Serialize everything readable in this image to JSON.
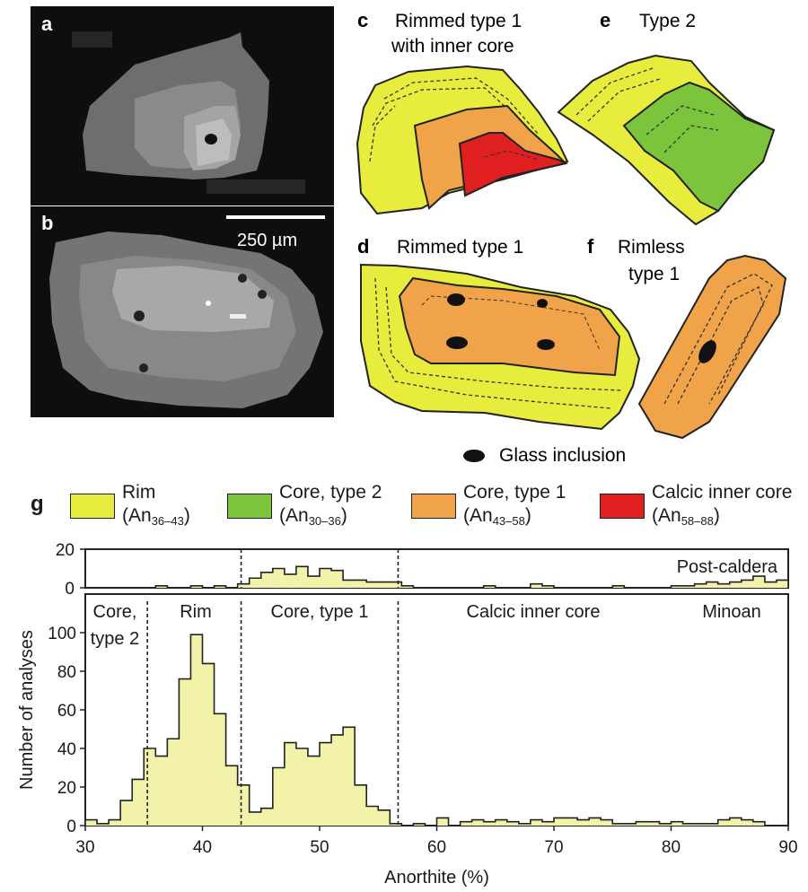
{
  "panels": {
    "a": {
      "letter": "a"
    },
    "b": {
      "letter": "b"
    },
    "scale_bar": "250 µm",
    "c": {
      "letter": "c",
      "title_line1": "Rimmed type 1",
      "title_line2": "with inner core"
    },
    "d": {
      "letter": "d",
      "title": "Rimmed type 1"
    },
    "e": {
      "letter": "e",
      "title": "Type 2"
    },
    "f": {
      "letter": "f",
      "title_line1": "Rimless",
      "title_line2": "type 1"
    },
    "glass_label": "Glass inclusion"
  },
  "legend": {
    "letter": "g",
    "items": [
      {
        "label": "Rim",
        "range": "An",
        "sub": "36–43",
        "color": "#e8ec3c"
      },
      {
        "label": "Core, type 2",
        "range": "An",
        "sub": "30–36",
        "color": "#7cc43c"
      },
      {
        "label": "Core, type 1",
        "range": "An",
        "sub": "43–58",
        "color": "#f0a348"
      },
      {
        "label": "Calcic inner core",
        "range": "An",
        "sub": "58–88",
        "color": "#e02020"
      }
    ]
  },
  "colors": {
    "rim": "#e8ec3c",
    "core_type2": "#7cc43c",
    "core_type1": "#f0a348",
    "calcic": "#e02020",
    "hist_fill": "#f2f2a8"
  },
  "chart_data": [
    {
      "type": "bar",
      "panel": "Post-caldera",
      "xlim": [
        30,
        90
      ],
      "ylim": [
        0,
        20
      ],
      "yticks": [
        "20",
        "0"
      ],
      "dashed_x": [
        43.3,
        56.7
      ],
      "bin_width": 1,
      "x": [
        30,
        31,
        32,
        33,
        34,
        35,
        36,
        37,
        38,
        39,
        40,
        41,
        42,
        43,
        44,
        45,
        46,
        47,
        48,
        49,
        50,
        51,
        52,
        53,
        54,
        55,
        56,
        57,
        58,
        59,
        60,
        61,
        62,
        63,
        64,
        65,
        66,
        67,
        68,
        69,
        70,
        71,
        72,
        73,
        74,
        75,
        76,
        77,
        78,
        79,
        80,
        81,
        82,
        83,
        84,
        85,
        86,
        87,
        88,
        89
      ],
      "values": [
        0,
        0,
        0,
        0,
        0,
        0,
        1,
        0,
        0,
        1,
        0,
        1,
        0,
        2,
        5,
        8,
        10,
        7,
        11,
        6,
        10,
        9,
        4,
        4,
        3,
        3,
        3,
        1,
        0,
        0,
        0,
        0,
        0,
        0,
        1,
        0,
        0,
        0,
        2,
        1,
        0,
        0,
        0,
        0,
        0,
        1,
        0,
        0,
        0,
        0,
        1,
        1,
        2,
        3,
        2,
        3,
        4,
        6,
        3,
        4
      ]
    },
    {
      "type": "bar",
      "panel": "Minoan",
      "xlabel": "Anorthite (%)",
      "ylabel": "Number of analyses",
      "xlim": [
        30,
        90
      ],
      "ylim": [
        0,
        120
      ],
      "xticks": [
        "30",
        "40",
        "50",
        "60",
        "70",
        "80",
        "90"
      ],
      "yticks": [
        "0",
        "20",
        "40",
        "60",
        "80",
        "100"
      ],
      "dashed_x": [
        35.3,
        43.3,
        56.7
      ],
      "region_labels": [
        {
          "line1": "Core,",
          "line2": "type 2"
        },
        {
          "line1": "Rim",
          "line2": ""
        },
        {
          "line1": "Core, type 1",
          "line2": ""
        },
        {
          "line1": "Calcic inner core",
          "line2": ""
        },
        {
          "line1": "Minoan",
          "line2": ""
        }
      ],
      "bin_width": 1,
      "x": [
        30,
        31,
        32,
        33,
        34,
        35,
        36,
        37,
        38,
        39,
        40,
        41,
        42,
        43,
        44,
        45,
        46,
        47,
        48,
        49,
        50,
        51,
        52,
        53,
        54,
        55,
        56,
        57,
        58,
        59,
        60,
        61,
        62,
        63,
        64,
        65,
        66,
        67,
        68,
        69,
        70,
        71,
        72,
        73,
        74,
        75,
        76,
        77,
        78,
        79,
        80,
        81,
        82,
        83,
        84,
        85,
        86,
        87,
        88,
        89
      ],
      "values": [
        3,
        1,
        3,
        13,
        24,
        40,
        36,
        45,
        76,
        99,
        84,
        58,
        31,
        21,
        7,
        9,
        30,
        43,
        40,
        36,
        43,
        47,
        51,
        21,
        10,
        8,
        1,
        0,
        1,
        0,
        4,
        0,
        2,
        3,
        2,
        3,
        2,
        1,
        3,
        2,
        4,
        4,
        3,
        4,
        3,
        1,
        1,
        2,
        2,
        1,
        2,
        1,
        1,
        1,
        3,
        4,
        3,
        2,
        0,
        0
      ]
    }
  ]
}
